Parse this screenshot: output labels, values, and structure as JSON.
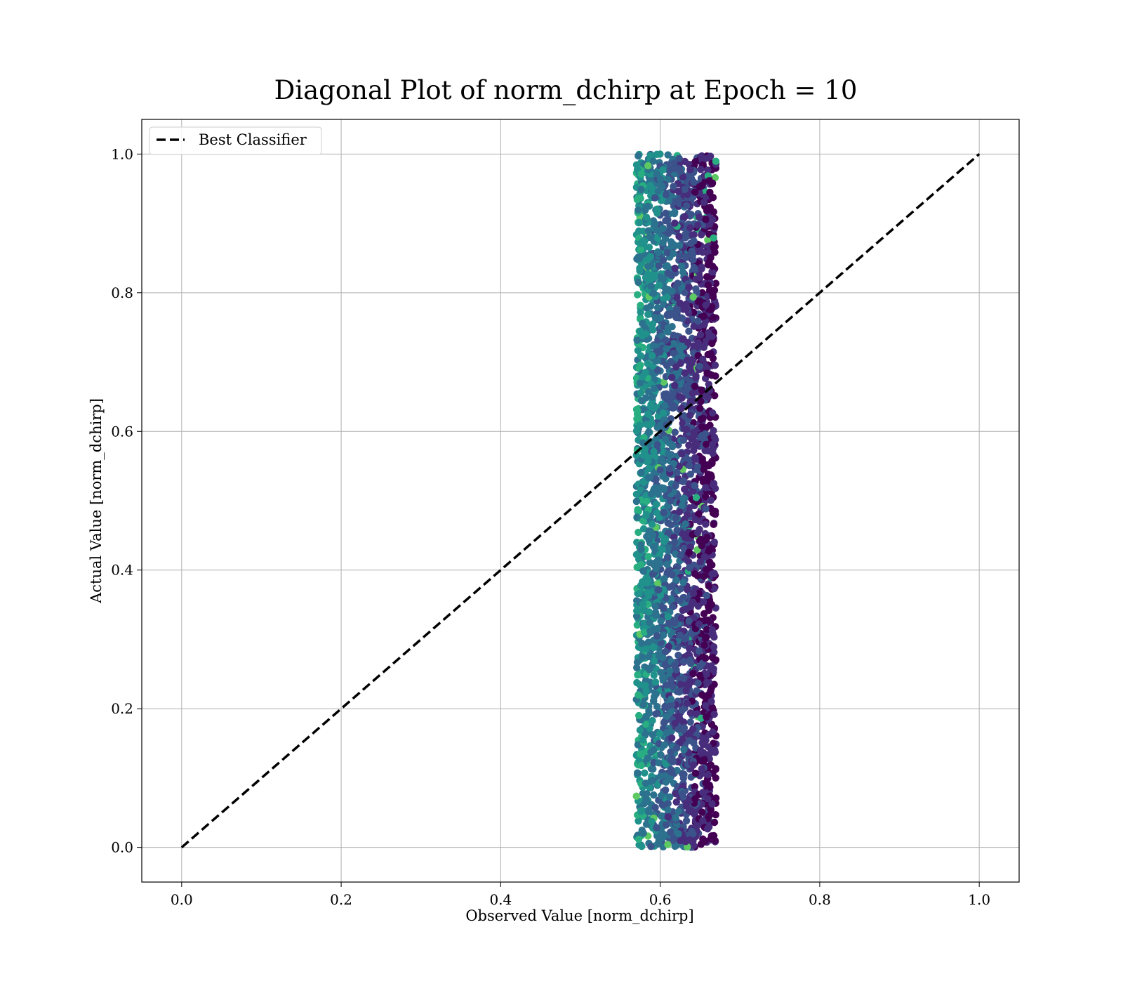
{
  "chart_data": {
    "type": "scatter",
    "title": "Diagonal Plot of norm_dchirp at Epoch = 10",
    "xlabel": "Observed Value [norm_dchirp]",
    "ylabel": "Actual Value [norm_dchirp]",
    "xlim": [
      -0.05,
      1.05
    ],
    "ylim": [
      -0.05,
      1.05
    ],
    "xticks": [
      0.0,
      0.2,
      0.4,
      0.6,
      0.8,
      1.0
    ],
    "yticks": [
      0.0,
      0.2,
      0.4,
      0.6,
      0.8,
      1.0
    ],
    "xtick_labels": [
      "0.0",
      "0.2",
      "0.4",
      "0.6",
      "0.8",
      "1.0"
    ],
    "ytick_labels": [
      "0.0",
      "0.2",
      "0.4",
      "0.6",
      "0.8",
      "1.0"
    ],
    "grid": true,
    "legend": {
      "placement": "top-left",
      "entries": [
        "Best Classifier"
      ]
    },
    "series": [
      {
        "name": "Best Classifier",
        "kind": "line",
        "style": "dashed",
        "color": "#000000",
        "x": [
          0.0,
          1.0
        ],
        "y": [
          0.0,
          1.0
        ]
      }
    ],
    "scatter": {
      "colormap": "viridis",
      "x_range": [
        0.57,
        0.67
      ],
      "y_range": [
        0.0,
        1.0
      ],
      "point_count": 3000,
      "note_colors": [
        "#440154",
        "#472d7b",
        "#3b528b",
        "#2c728e",
        "#21918c",
        "#28ae80",
        "#5ec962"
      ]
    }
  }
}
